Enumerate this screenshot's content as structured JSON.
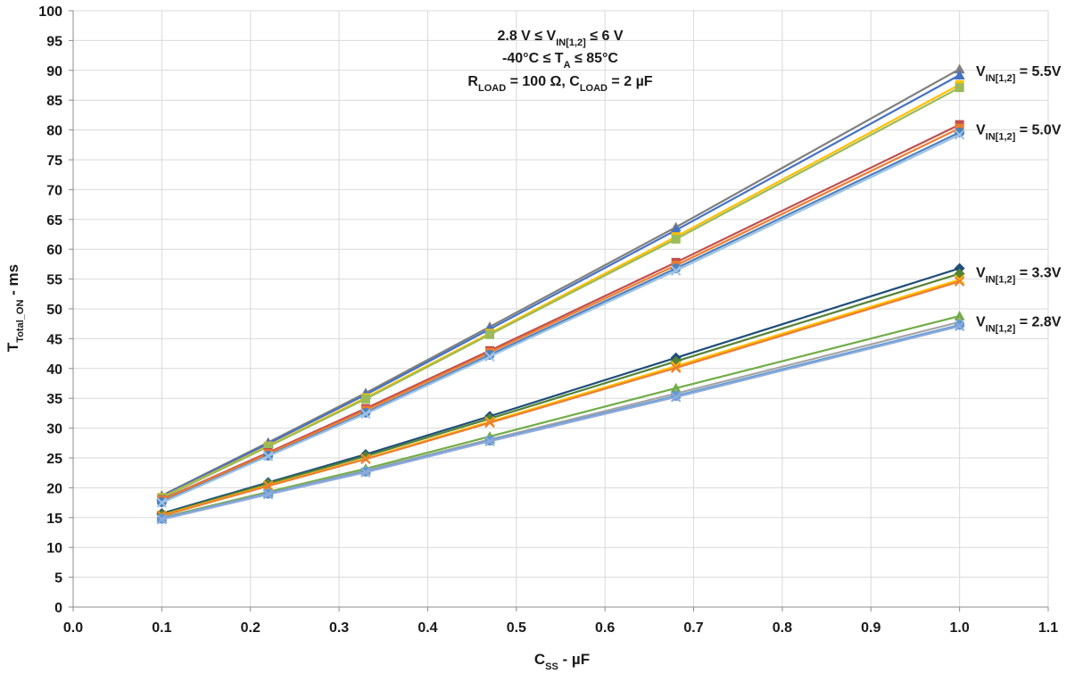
{
  "chart_data": {
    "type": "line",
    "xlabel": {
      "main": "C",
      "sub": "SS",
      "rest": " - µF"
    },
    "ylabel": {
      "main": "T",
      "sub": "Total_ON",
      "rest": " - ms"
    },
    "xlim": [
      0.0,
      1.1
    ],
    "ylim": [
      0,
      100
    ],
    "x_ticks": [
      "0.0",
      "0.1",
      "0.2",
      "0.3",
      "0.4",
      "0.5",
      "0.6",
      "0.7",
      "0.8",
      "0.9",
      "1.0",
      "1.1"
    ],
    "y_ticks": [
      "0",
      "5",
      "10",
      "15",
      "20",
      "25",
      "30",
      "35",
      "40",
      "45",
      "50",
      "55",
      "60",
      "65",
      "70",
      "75",
      "80",
      "85",
      "90",
      "95",
      "100"
    ],
    "grid": true,
    "annotation": [
      {
        "parts": [
          {
            "t": "2.8 V ≤ V"
          },
          {
            "t": "IN[1,2]",
            "sub": true
          },
          {
            "t": " ≤ 6 V"
          }
        ]
      },
      {
        "parts": [
          {
            "t": "-40°C ≤ T"
          },
          {
            "t": "A",
            "sub": true
          },
          {
            "t": " ≤ 85°C"
          }
        ]
      },
      {
        "parts": [
          {
            "t": "R"
          },
          {
            "t": "LOAD",
            "sub": true
          },
          {
            "t": " = 100 Ω, C"
          },
          {
            "t": "LOAD",
            "sub": true
          },
          {
            "t": " = 2 µF"
          }
        ]
      }
    ],
    "group_labels": [
      {
        "main": "V",
        "sub": "IN[1,2]",
        "rest": " = 5.5V",
        "y": 89.5
      },
      {
        "main": "V",
        "sub": "IN[1,2]",
        "rest": " = 5.0V",
        "y": 80.2
      },
      {
        "main": "V",
        "sub": "IN[1,2]",
        "rest": " = 3.3V",
        "y": 56.2
      },
      {
        "main": "V",
        "sub": "IN[1,2]",
        "rest": " = 2.8V",
        "y": 48.0
      }
    ],
    "x": [
      0.1,
      0.22,
      0.33,
      0.47,
      0.68,
      1.0
    ],
    "series": [
      {
        "color": "#7f7f7f",
        "marker": "triangle",
        "values": [
          18.7,
          27.6,
          35.9,
          47.0,
          63.7,
          90.2
        ]
      },
      {
        "color": "#4472c4",
        "marker": "triangle",
        "values": [
          18.6,
          27.4,
          35.6,
          46.6,
          63.2,
          89.2
        ]
      },
      {
        "color": "#ffc000",
        "marker": "square",
        "values": [
          18.4,
          27.0,
          35.1,
          45.9,
          62.1,
          87.6
        ]
      },
      {
        "color": "#9bbb59",
        "marker": "square",
        "values": [
          18.3,
          26.9,
          34.9,
          45.7,
          61.7,
          87.1
        ]
      },
      {
        "color": "#c0504d",
        "marker": "square",
        "values": [
          18.0,
          25.9,
          33.3,
          43.0,
          57.8,
          80.9
        ]
      },
      {
        "color": "#ed7d31",
        "marker": "square",
        "values": [
          17.9,
          25.7,
          33.0,
          42.7,
          57.3,
          80.3
        ]
      },
      {
        "color": "#4f81bd",
        "marker": "circle",
        "values": [
          17.6,
          25.4,
          32.6,
          42.3,
          56.8,
          79.6
        ]
      },
      {
        "color": "#9dc3e6",
        "marker": "x",
        "values": [
          17.5,
          25.3,
          32.4,
          42.0,
          56.4,
          79.2
        ]
      },
      {
        "color": "#1f4e79",
        "marker": "diamond",
        "values": [
          15.7,
          20.9,
          25.6,
          32.0,
          41.8,
          56.8
        ]
      },
      {
        "color": "#548235",
        "marker": "diamond",
        "values": [
          15.5,
          20.7,
          25.3,
          31.6,
          41.2,
          55.9
        ]
      },
      {
        "color": "#ffc000",
        "marker": "x",
        "values": [
          15.4,
          20.4,
          24.9,
          31.1,
          40.4,
          54.9
        ]
      },
      {
        "color": "#ed7d31",
        "marker": "x",
        "values": [
          15.3,
          20.3,
          24.8,
          30.9,
          40.1,
          54.6
        ]
      },
      {
        "color": "#70ad47",
        "marker": "triangle",
        "values": [
          15.0,
          19.3,
          23.2,
          28.6,
          36.7,
          48.8
        ]
      },
      {
        "color": "#a5a5a5",
        "marker": "triangle",
        "values": [
          14.9,
          19.1,
          22.9,
          28.1,
          35.8,
          47.8
        ]
      },
      {
        "color": "#5b9bd5",
        "marker": "circle",
        "values": [
          14.8,
          19.0,
          22.7,
          27.9,
          35.4,
          47.3
        ]
      },
      {
        "color": "#8faadc",
        "marker": "x",
        "values": [
          14.7,
          18.9,
          22.6,
          27.8,
          35.2,
          47.1
        ]
      }
    ]
  }
}
